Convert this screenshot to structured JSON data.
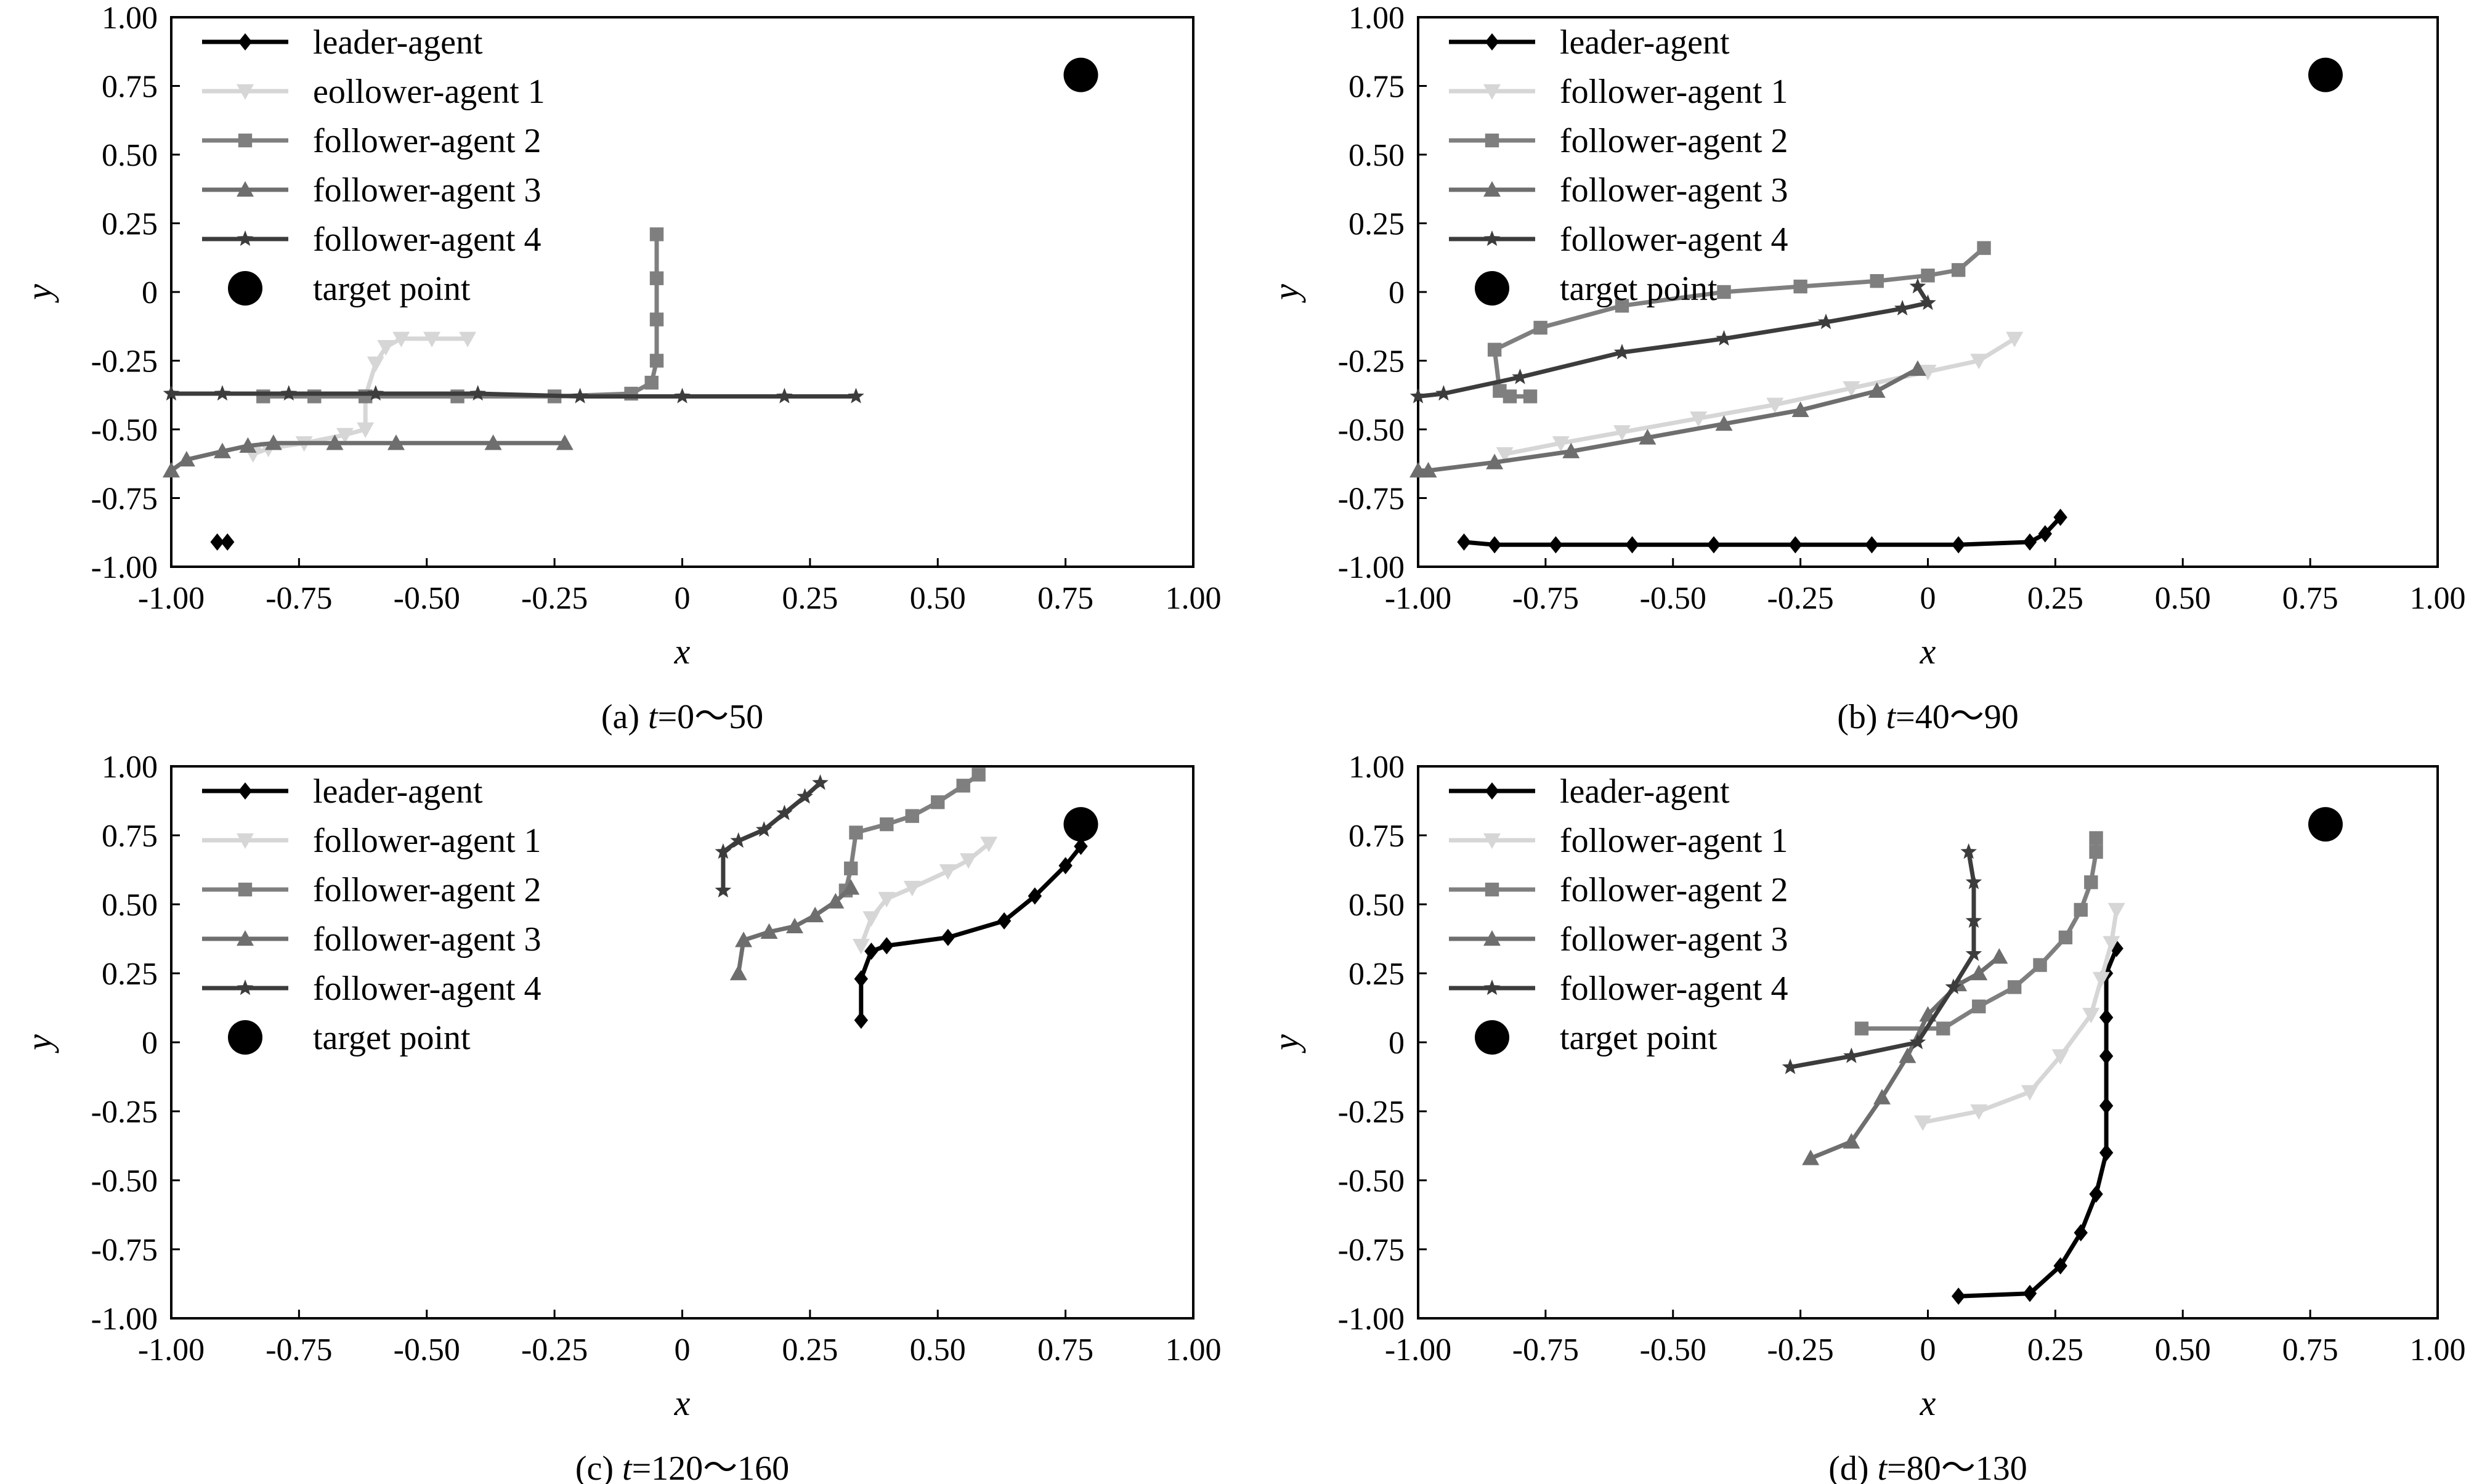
{
  "chart_data": [
    {
      "type": "line",
      "caption": {
        "prefix": "(a) ",
        "var": "t",
        "rest": "=0～50"
      },
      "xlabel": "x",
      "ylabel": "y",
      "xlim": [
        -1.0,
        1.0
      ],
      "ylim": [
        -1.0,
        1.0
      ],
      "xticks": [
        "-1.00",
        "-0.75",
        "-0.50",
        "-0.25",
        "0",
        "0.25",
        "0.50",
        "0.75",
        "1.00"
      ],
      "yticks": [
        "1.00",
        "0.75",
        "0.50",
        "0.25",
        "0",
        "-0.25",
        "-0.50",
        "-0.75",
        "-1.00"
      ],
      "grid": false,
      "legend_position": "top-left",
      "series": [
        {
          "name": "leader-agent",
          "color": "#000000",
          "marker": "diamond",
          "points": [
            [
              -0.91,
              -0.91
            ],
            [
              -0.89,
              -0.91
            ]
          ]
        },
        {
          "name": "eollower-agent 1",
          "color": "#d6d6d6",
          "marker": "triangle-down",
          "points": [
            [
              -0.84,
              -0.59
            ],
            [
              -0.81,
              -0.57
            ],
            [
              -0.74,
              -0.55
            ],
            [
              -0.66,
              -0.52
            ],
            [
              -0.62,
              -0.5
            ],
            [
              -0.62,
              -0.38
            ],
            [
              -0.6,
              -0.26
            ],
            [
              -0.58,
              -0.2
            ],
            [
              -0.55,
              -0.17
            ],
            [
              -0.49,
              -0.17
            ],
            [
              -0.42,
              -0.17
            ]
          ]
        },
        {
          "name": "follower-agent 2",
          "color": "#7f7f7f",
          "marker": "square",
          "points": [
            [
              -0.82,
              -0.38
            ],
            [
              -0.72,
              -0.38
            ],
            [
              -0.62,
              -0.38
            ],
            [
              -0.44,
              -0.38
            ],
            [
              -0.25,
              -0.38
            ],
            [
              -0.1,
              -0.37
            ],
            [
              -0.06,
              -0.33
            ],
            [
              -0.05,
              -0.25
            ],
            [
              -0.05,
              -0.1
            ],
            [
              -0.05,
              0.05
            ],
            [
              -0.05,
              0.21
            ]
          ]
        },
        {
          "name": "follower-agent 3",
          "color": "#6e6e6e",
          "marker": "triangle-up",
          "points": [
            [
              -1.0,
              -0.65
            ],
            [
              -0.97,
              -0.61
            ],
            [
              -0.9,
              -0.58
            ],
            [
              -0.85,
              -0.56
            ],
            [
              -0.8,
              -0.55
            ],
            [
              -0.68,
              -0.55
            ],
            [
              -0.56,
              -0.55
            ],
            [
              -0.37,
              -0.55
            ],
            [
              -0.23,
              -0.55
            ]
          ]
        },
        {
          "name": "follower-agent 4",
          "color": "#3c3c3c",
          "marker": "star",
          "points": [
            [
              -1.0,
              -0.37
            ],
            [
              -0.9,
              -0.37
            ],
            [
              -0.77,
              -0.37
            ],
            [
              -0.6,
              -0.37
            ],
            [
              -0.4,
              -0.37
            ],
            [
              -0.2,
              -0.38
            ],
            [
              0.0,
              -0.38
            ],
            [
              0.2,
              -0.38
            ],
            [
              0.34,
              -0.38
            ]
          ]
        },
        {
          "name": "target point",
          "color": "#000000",
          "marker": "circle",
          "line": false,
          "points": [
            [
              0.78,
              0.79
            ]
          ]
        }
      ]
    },
    {
      "type": "line",
      "caption": {
        "prefix": "(b) ",
        "var": "t",
        "rest": "=40～90"
      },
      "xlabel": "x",
      "ylabel": "y",
      "xlim": [
        -1.0,
        1.0
      ],
      "ylim": [
        -1.0,
        1.0
      ],
      "xticks": [
        "-1.00",
        "-0.75",
        "-0.50",
        "-0.25",
        "0",
        "0.25",
        "0.50",
        "0.75",
        "1.00"
      ],
      "yticks": [
        "1.00",
        "0.75",
        "0.50",
        "0.25",
        "0",
        "-0.25",
        "-0.50",
        "-0.75",
        "-1.00"
      ],
      "grid": false,
      "legend_position": "top-left",
      "series": [
        {
          "name": "leader-agent",
          "color": "#000000",
          "marker": "diamond",
          "points": [
            [
              -0.91,
              -0.91
            ],
            [
              -0.85,
              -0.92
            ],
            [
              -0.73,
              -0.92
            ],
            [
              -0.58,
              -0.92
            ],
            [
              -0.42,
              -0.92
            ],
            [
              -0.26,
              -0.92
            ],
            [
              -0.11,
              -0.92
            ],
            [
              0.06,
              -0.92
            ],
            [
              0.2,
              -0.91
            ],
            [
              0.23,
              -0.88
            ],
            [
              0.26,
              -0.82
            ]
          ]
        },
        {
          "name": "follower-agent 1",
          "color": "#d6d6d6",
          "marker": "triangle-down",
          "points": [
            [
              -0.83,
              -0.59
            ],
            [
              -0.72,
              -0.55
            ],
            [
              -0.6,
              -0.51
            ],
            [
              -0.45,
              -0.46
            ],
            [
              -0.3,
              -0.41
            ],
            [
              -0.15,
              -0.35
            ],
            [
              0.0,
              -0.29
            ],
            [
              0.1,
              -0.25
            ],
            [
              0.17,
              -0.17
            ]
          ]
        },
        {
          "name": "follower-agent 2",
          "color": "#7f7f7f",
          "marker": "square",
          "points": [
            [
              -0.78,
              -0.38
            ],
            [
              -0.82,
              -0.38
            ],
            [
              -0.84,
              -0.36
            ],
            [
              -0.85,
              -0.21
            ],
            [
              -0.76,
              -0.13
            ],
            [
              -0.6,
              -0.05
            ],
            [
              -0.4,
              0.0
            ],
            [
              -0.25,
              0.02
            ],
            [
              -0.1,
              0.04
            ],
            [
              0.0,
              0.06
            ],
            [
              0.06,
              0.08
            ],
            [
              0.11,
              0.16
            ]
          ]
        },
        {
          "name": "follower-agent 3",
          "color": "#6e6e6e",
          "marker": "triangle-up",
          "points": [
            [
              -1.0,
              -0.65
            ],
            [
              -0.98,
              -0.65
            ],
            [
              -0.85,
              -0.62
            ],
            [
              -0.7,
              -0.58
            ],
            [
              -0.55,
              -0.53
            ],
            [
              -0.4,
              -0.48
            ],
            [
              -0.25,
              -0.43
            ],
            [
              -0.1,
              -0.36
            ],
            [
              -0.02,
              -0.28
            ]
          ]
        },
        {
          "name": "follower-agent 4",
          "color": "#3c3c3c",
          "marker": "star",
          "points": [
            [
              -1.0,
              -0.38
            ],
            [
              -0.95,
              -0.37
            ],
            [
              -0.8,
              -0.31
            ],
            [
              -0.6,
              -0.22
            ],
            [
              -0.4,
              -0.17
            ],
            [
              -0.2,
              -0.11
            ],
            [
              -0.05,
              -0.06
            ],
            [
              0.0,
              -0.04
            ],
            [
              -0.02,
              0.02
            ]
          ]
        },
        {
          "name": "target point",
          "color": "#000000",
          "marker": "circle",
          "line": false,
          "points": [
            [
              0.78,
              0.79
            ]
          ]
        }
      ]
    },
    {
      "type": "line",
      "caption": {
        "prefix": "(c) ",
        "var": "t",
        "rest": "=120～160"
      },
      "xlabel": "x",
      "ylabel": "y",
      "xlim": [
        -1.0,
        1.0
      ],
      "ylim": [
        -1.0,
        1.0
      ],
      "xticks": [
        "-1.00",
        "-0.75",
        "-0.50",
        "-0.25",
        "0",
        "0.25",
        "0.50",
        "0.75",
        "1.00"
      ],
      "yticks": [
        "1.00",
        "0.75",
        "0.50",
        "0.25",
        "0",
        "-0.25",
        "-0.50",
        "-0.75",
        "-1.00"
      ],
      "grid": false,
      "legend_position": "top-left",
      "series": [
        {
          "name": "leader-agent",
          "color": "#000000",
          "marker": "diamond",
          "points": [
            [
              0.35,
              0.08
            ],
            [
              0.35,
              0.23
            ],
            [
              0.37,
              0.33
            ],
            [
              0.4,
              0.35
            ],
            [
              0.52,
              0.38
            ],
            [
              0.63,
              0.44
            ],
            [
              0.69,
              0.53
            ],
            [
              0.75,
              0.64
            ],
            [
              0.78,
              0.71
            ]
          ]
        },
        {
          "name": "follower-agent 1",
          "color": "#d6d6d6",
          "marker": "triangle-down",
          "points": [
            [
              0.35,
              0.35
            ],
            [
              0.37,
              0.45
            ],
            [
              0.4,
              0.52
            ],
            [
              0.45,
              0.56
            ],
            [
              0.52,
              0.62
            ],
            [
              0.56,
              0.66
            ],
            [
              0.6,
              0.72
            ]
          ]
        },
        {
          "name": "follower-agent 2",
          "color": "#7f7f7f",
          "marker": "square",
          "points": [
            [
              0.32,
              0.55
            ],
            [
              0.33,
              0.63
            ],
            [
              0.34,
              0.76
            ],
            [
              0.4,
              0.79
            ],
            [
              0.45,
              0.82
            ],
            [
              0.5,
              0.87
            ],
            [
              0.55,
              0.93
            ],
            [
              0.58,
              0.97
            ]
          ]
        },
        {
          "name": "follower-agent 3",
          "color": "#6e6e6e",
          "marker": "triangle-up",
          "points": [
            [
              0.11,
              0.25
            ],
            [
              0.12,
              0.37
            ],
            [
              0.17,
              0.4
            ],
            [
              0.22,
              0.42
            ],
            [
              0.26,
              0.46
            ],
            [
              0.3,
              0.51
            ],
            [
              0.33,
              0.56
            ]
          ]
        },
        {
          "name": "follower-agent 4",
          "color": "#3c3c3c",
          "marker": "star",
          "points": [
            [
              0.08,
              0.55
            ],
            [
              0.08,
              0.69
            ],
            [
              0.11,
              0.73
            ],
            [
              0.16,
              0.77
            ],
            [
              0.2,
              0.83
            ],
            [
              0.24,
              0.89
            ],
            [
              0.27,
              0.94
            ]
          ]
        },
        {
          "name": "target point",
          "color": "#000000",
          "marker": "circle",
          "line": false,
          "points": [
            [
              0.78,
              0.79
            ]
          ]
        }
      ]
    },
    {
      "type": "line",
      "caption": {
        "prefix": "(d) ",
        "var": "t",
        "rest": "=80～130"
      },
      "xlabel": "x",
      "ylabel": "y",
      "xlim": [
        -1.0,
        1.0
      ],
      "ylim": [
        -1.0,
        1.0
      ],
      "xticks": [
        "-1.00",
        "-0.75",
        "-0.50",
        "-0.25",
        "0",
        "0.25",
        "0.50",
        "0.75",
        "1.00"
      ],
      "yticks": [
        "1.00",
        "0.75",
        "0.50",
        "0.25",
        "0",
        "-0.25",
        "-0.50",
        "-0.75",
        "-1.00"
      ],
      "grid": false,
      "legend_position": "top-left",
      "series": [
        {
          "name": "leader-agent",
          "color": "#000000",
          "marker": "diamond",
          "points": [
            [
              0.06,
              -0.92
            ],
            [
              0.2,
              -0.91
            ],
            [
              0.26,
              -0.81
            ],
            [
              0.3,
              -0.69
            ],
            [
              0.33,
              -0.55
            ],
            [
              0.35,
              -0.4
            ],
            [
              0.35,
              -0.23
            ],
            [
              0.35,
              -0.05
            ],
            [
              0.35,
              0.09
            ],
            [
              0.35,
              0.25
            ],
            [
              0.37,
              0.34
            ]
          ]
        },
        {
          "name": "follower-agent 1",
          "color": "#d6d6d6",
          "marker": "triangle-down",
          "points": [
            [
              -0.01,
              -0.29
            ],
            [
              0.1,
              -0.25
            ],
            [
              0.2,
              -0.18
            ],
            [
              0.26,
              -0.05
            ],
            [
              0.32,
              0.1
            ],
            [
              0.34,
              0.23
            ],
            [
              0.36,
              0.36
            ],
            [
              0.37,
              0.48
            ]
          ]
        },
        {
          "name": "follower-agent 2",
          "color": "#7f7f7f",
          "marker": "square",
          "points": [
            [
              -0.13,
              0.05
            ],
            [
              0.03,
              0.05
            ],
            [
              0.1,
              0.13
            ],
            [
              0.17,
              0.2
            ],
            [
              0.22,
              0.28
            ],
            [
              0.27,
              0.38
            ],
            [
              0.3,
              0.48
            ],
            [
              0.32,
              0.58
            ],
            [
              0.33,
              0.69
            ],
            [
              0.33,
              0.74
            ]
          ]
        },
        {
          "name": "follower-agent 3",
          "color": "#6e6e6e",
          "marker": "triangle-up",
          "points": [
            [
              -0.23,
              -0.42
            ],
            [
              -0.15,
              -0.36
            ],
            [
              -0.09,
              -0.2
            ],
            [
              -0.04,
              -0.05
            ],
            [
              0.0,
              0.1
            ],
            [
              0.06,
              0.21
            ],
            [
              0.1,
              0.25
            ],
            [
              0.14,
              0.31
            ]
          ]
        },
        {
          "name": "follower-agent 4",
          "color": "#3c3c3c",
          "marker": "star",
          "points": [
            [
              -0.27,
              -0.09
            ],
            [
              -0.15,
              -0.05
            ],
            [
              -0.02,
              0.0
            ],
            [
              0.05,
              0.2
            ],
            [
              0.09,
              0.32
            ],
            [
              0.09,
              0.44
            ],
            [
              0.09,
              0.58
            ],
            [
              0.08,
              0.69
            ]
          ]
        },
        {
          "name": "target point",
          "color": "#000000",
          "marker": "circle",
          "line": false,
          "points": [
            [
              0.78,
              0.79
            ]
          ]
        }
      ]
    }
  ]
}
